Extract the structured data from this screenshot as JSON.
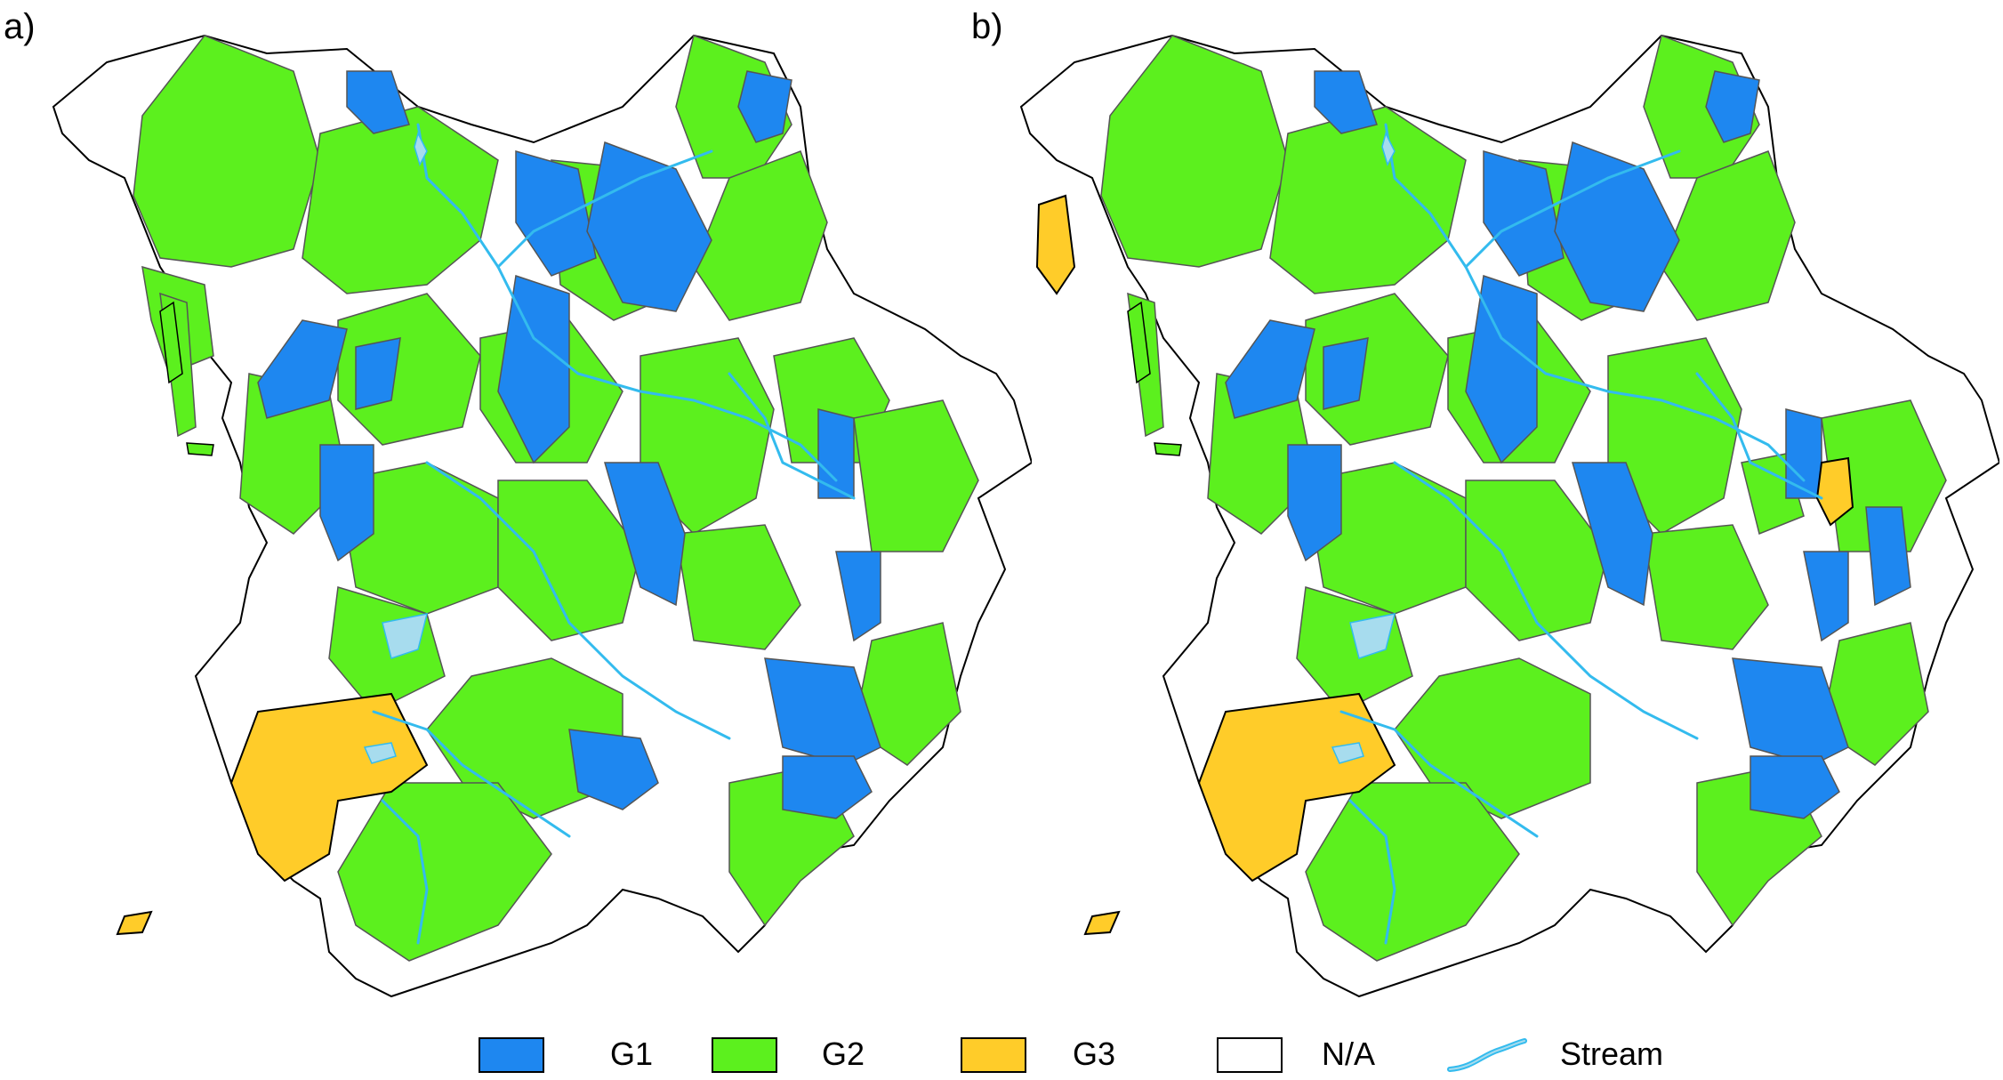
{
  "panels": [
    {
      "label": "a)"
    },
    {
      "label": "b)"
    }
  ],
  "legend": [
    {
      "key": "g1",
      "label": "G1",
      "color": "#1e87f0"
    },
    {
      "key": "g2",
      "label": "G2",
      "color": "#5cf01e"
    },
    {
      "key": "g3",
      "label": "G3",
      "color": "#ffcc29"
    },
    {
      "key": "na",
      "label": "N/A",
      "color": "#ffffff"
    },
    {
      "key": "stream",
      "label": "Stream",
      "color": "#33bbee"
    }
  ],
  "colors": {
    "g1": "#1e87f0",
    "g2": "#5cf01e",
    "g3": "#ffcc29",
    "na": "#ffffff",
    "stream": "#33bbee",
    "outline": "#000000",
    "inner_border": "#777777"
  }
}
